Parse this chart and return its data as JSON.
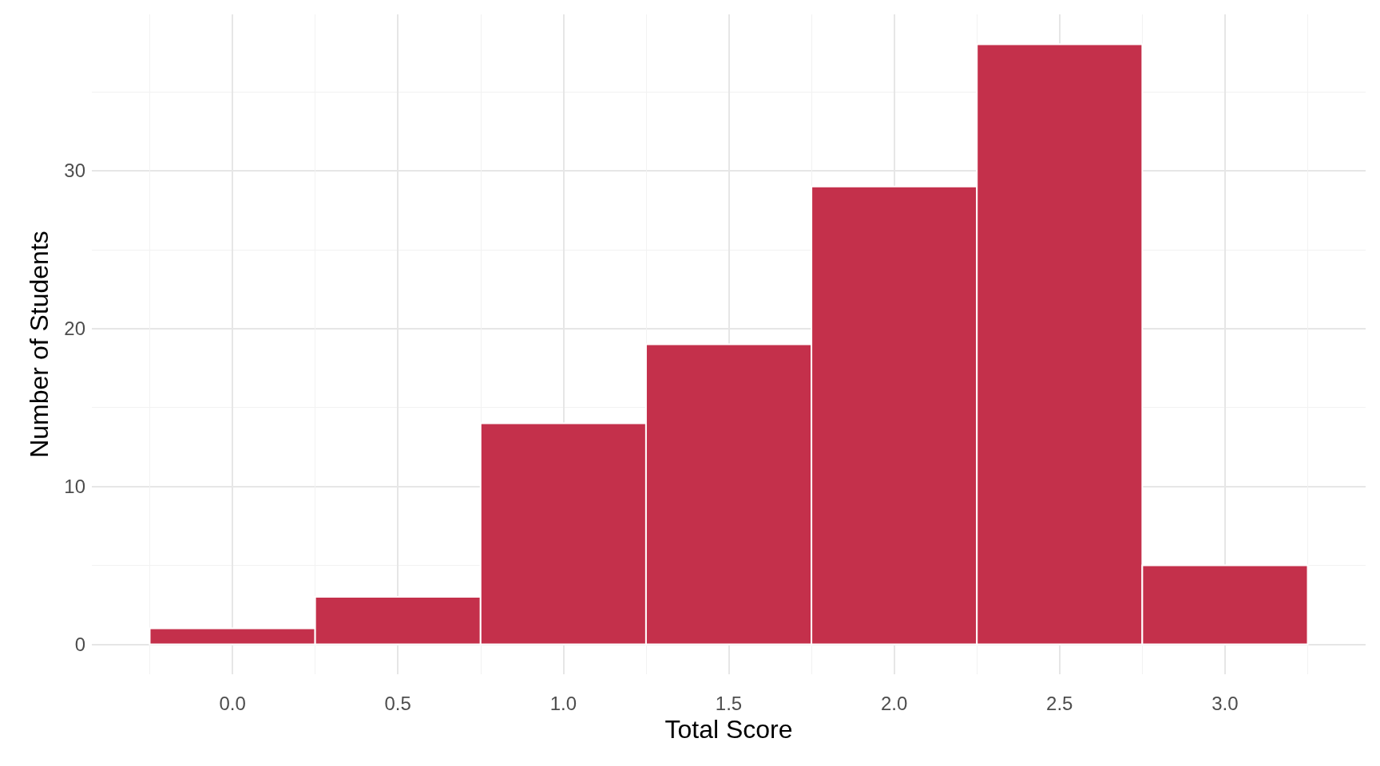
{
  "chart_data": {
    "type": "histogram",
    "xlabel": "Total Score",
    "ylabel": "Number of Students",
    "bins": [
      -0.25,
      0.25,
      0.75,
      1.25,
      1.75,
      2.25,
      2.75,
      3.25
    ],
    "values": [
      1,
      3,
      14,
      19,
      29,
      38,
      5
    ],
    "color": "#c4304b",
    "xlim": [
      -0.425,
      3.425
    ],
    "xticks": [
      {
        "value": 0,
        "label": "0.0"
      },
      0.5,
      {
        "value": 1,
        "label": "1.0"
      },
      1.5,
      {
        "value": 2,
        "label": "2.0"
      },
      2.5,
      {
        "value": 3,
        "label": "3.0"
      }
    ],
    "ylim": [
      -1.9,
      39.9
    ],
    "yticks": [
      0,
      10,
      20,
      30
    ],
    "grid": true
  }
}
